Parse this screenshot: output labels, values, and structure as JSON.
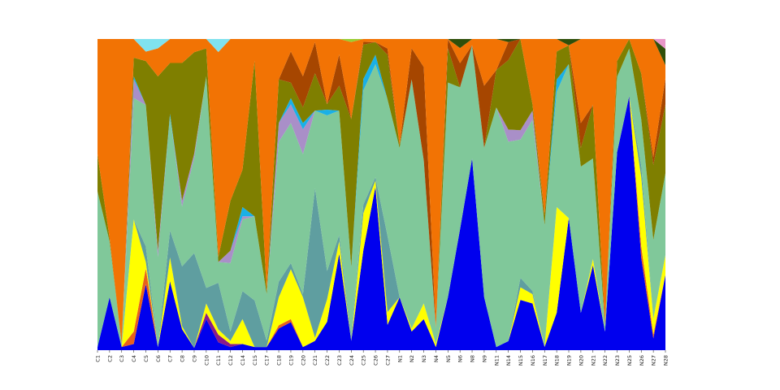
{
  "chart_data": {
    "type": "area",
    "stacked": true,
    "normalized": true,
    "ylim": [
      0,
      1
    ],
    "grid": false,
    "legend": "none",
    "categories": [
      "C1",
      "C2",
      "C3",
      "C4",
      "C5",
      "C6",
      "C7",
      "C8",
      "C9",
      "C10",
      "C11",
      "C12",
      "C14",
      "C15",
      "C17",
      "C18",
      "C19",
      "C20",
      "C21",
      "C22",
      "C23",
      "C24",
      "C25",
      "C26",
      "C27",
      "N1",
      "N2",
      "N3",
      "N4",
      "N5",
      "N6",
      "N8",
      "N9",
      "N11",
      "N14",
      "N15",
      "N16",
      "N17",
      "N18",
      "N19",
      "N20",
      "N21",
      "N22",
      "N23",
      "N25",
      "N26",
      "N27",
      "N28"
    ],
    "series": [
      {
        "color": "#0000ee",
        "values": [
          0.01,
          0.17,
          0.01,
          0.02,
          0.21,
          0.01,
          0.23,
          0.07,
          0.01,
          0.1,
          0.03,
          0.01,
          0.02,
          0.01,
          0.01,
          0.07,
          0.09,
          0.01,
          0.03,
          0.1,
          0.31,
          0.03,
          0.35,
          0.52,
          0.08,
          0.17,
          0.06,
          0.1,
          0.01,
          0.17,
          0.4,
          0.61,
          0.17,
          0.01,
          0.03,
          0.16,
          0.15,
          0.01,
          0.12,
          0.42,
          0.12,
          0.27,
          0.06,
          0.63,
          0.8,
          0.08,
          0.03,
          0.23
        ]
      },
      {
        "color": "#e8601c",
        "values": [
          0,
          0,
          0,
          0.04,
          0.05,
          0,
          0,
          0,
          0,
          0,
          0,
          0,
          0,
          0,
          0,
          0.01,
          0.01,
          0,
          0,
          0,
          0,
          0,
          0,
          0,
          0,
          0,
          0,
          0,
          0,
          0,
          0,
          0,
          0,
          0,
          0,
          0,
          0,
          0,
          0,
          0,
          0,
          0,
          0,
          0,
          0,
          0.01,
          0.01,
          0
        ]
      },
      {
        "color": "#8b1a89",
        "values": [
          0,
          0,
          0,
          0,
          0,
          0,
          0,
          0,
          0,
          0.02,
          0.03,
          0.01,
          0,
          0,
          0,
          0,
          0,
          0,
          0,
          0,
          0,
          0,
          0,
          0,
          0,
          0,
          0,
          0,
          0,
          0,
          0,
          0,
          0,
          0,
          0,
          0,
          0,
          0,
          0,
          0,
          0,
          0,
          0,
          0,
          0,
          0,
          0,
          0
        ]
      },
      {
        "color": "#ffff00",
        "values": [
          0,
          0,
          0,
          0.36,
          0.02,
          0,
          0.08,
          0.01,
          0,
          0.03,
          0.02,
          0.01,
          0.08,
          0,
          0,
          0.09,
          0.16,
          0.16,
          0.01,
          0.08,
          0.04,
          0,
          0.13,
          0.02,
          0.04,
          0,
          0.01,
          0.05,
          0.01,
          0,
          0,
          0,
          0,
          0,
          0,
          0.04,
          0.03,
          0,
          0.34,
          0,
          0,
          0.02,
          0,
          0,
          0,
          0.06,
          0.04,
          0.06
        ]
      },
      {
        "color": "#5f9ea0",
        "values": [
          0,
          0,
          0,
          0,
          0.05,
          0,
          0.09,
          0.2,
          0.43,
          0.05,
          0.18,
          0.03,
          0.09,
          0.15,
          0.02,
          0.05,
          0.02,
          0.01,
          0.48,
          0.1,
          0.02,
          0.01,
          0.03,
          0.01,
          0.24,
          0,
          0,
          0,
          0,
          0,
          0,
          0,
          0,
          0,
          0,
          0.03,
          0.01,
          0,
          0,
          0,
          0,
          0,
          0,
          0,
          0,
          0.01,
          0,
          0
        ]
      },
      {
        "color": "#80c89a",
        "values": [
          0.5,
          0.18,
          0.01,
          0.39,
          0.45,
          0.29,
          0.38,
          0.2,
          0.43,
          0.68,
          0.08,
          0.22,
          0.23,
          0.27,
          0.15,
          0.45,
          0.45,
          0.45,
          0.25,
          0.55,
          0.4,
          0.23,
          0.4,
          0.36,
          0.43,
          0.48,
          0.8,
          0.46,
          0.05,
          0.69,
          0.47,
          0.36,
          0.48,
          0.77,
          0.66,
          0.44,
          0.55,
          0.38,
          0.37,
          0.49,
          0.47,
          0.32,
          0.02,
          0.24,
          0.15,
          0.04,
          0.2,
          0.25
        ]
      },
      {
        "color": "#a98fc8",
        "values": [
          0,
          0,
          0,
          0.06,
          0,
          0.02,
          0,
          0.02,
          0.02,
          0,
          0,
          0.04,
          0.01,
          0,
          0,
          0.06,
          0.06,
          0.08,
          0,
          0,
          0,
          0,
          0,
          0,
          0,
          0,
          0,
          0,
          0,
          0,
          0,
          0,
          0,
          0,
          0.04,
          0.03,
          0.03,
          0,
          0,
          0,
          0,
          0,
          0,
          0,
          0,
          0,
          0,
          0
        ]
      },
      {
        "color": "#1ab0e6",
        "values": [
          0,
          0,
          0,
          0.01,
          0,
          0,
          0.01,
          0,
          0,
          0,
          0,
          0,
          0.03,
          0,
          0,
          0,
          0.02,
          0.02,
          0,
          0.02,
          0,
          0,
          0.04,
          0.03,
          0,
          0,
          0,
          0,
          0,
          0,
          0,
          0,
          0,
          0,
          0,
          0,
          0,
          0,
          0.04,
          0,
          0,
          0,
          0,
          0,
          0,
          0,
          0,
          0
        ]
      },
      {
        "color": "#7f7f00",
        "values": [
          0.12,
          0.01,
          0,
          0.06,
          0.14,
          0.56,
          0.17,
          0.46,
          0.46,
          0.09,
          0.02,
          0.16,
          0.12,
          0.5,
          0.01,
          0.14,
          0.05,
          0.05,
          0.12,
          0.02,
          0.08,
          0.48,
          0.12,
          0.04,
          0.14,
          0.01,
          0,
          0,
          0,
          0.11,
          0,
          0,
          0,
          0.12,
          0.23,
          0.29,
          0.02,
          0.03,
          0.09,
          0.06,
          0.06,
          0.17,
          0,
          0.05,
          0.03,
          0.04,
          0.19,
          0.21
        ]
      },
      {
        "color": "#a64600",
        "values": [
          0,
          0,
          0,
          0,
          0,
          0,
          0,
          0,
          0,
          0,
          0,
          0,
          0,
          0,
          0,
          0,
          0.1,
          0.1,
          0.1,
          0,
          0.1,
          0,
          0.01,
          0,
          0.02,
          0,
          0.1,
          0.3,
          0,
          0.03,
          0.08,
          0,
          0.2,
          0,
          0.06,
          0,
          0,
          0,
          0,
          0,
          0.08,
          0,
          0,
          0,
          0,
          0,
          0.02,
          0.08
        ]
      },
      {
        "color": "#f27304",
        "values": [
          0.37,
          0.64,
          0.98,
          0.06,
          0.03,
          0.09,
          0.08,
          0.08,
          0.06,
          0.03,
          0.79,
          0.52,
          0.42,
          0.07,
          0.81,
          0.13,
          0.04,
          0.12,
          0.01,
          0.23,
          0.05,
          0.25,
          0.01,
          0.01,
          0.03,
          0.34,
          0.03,
          0.09,
          0.91,
          0.0,
          0.05,
          0.02,
          0.15,
          0.1,
          0,
          0,
          0.21,
          0.55,
          0.04,
          0,
          0.27,
          0.21,
          0.92,
          0.07,
          0,
          0.03,
          0.3,
          0.04
        ]
      },
      {
        "color": "#9acd32",
        "values": [
          0,
          0,
          0,
          0,
          0,
          0,
          0,
          0,
          0,
          0,
          0,
          0,
          0,
          0,
          0,
          0,
          0,
          0,
          0,
          0,
          0,
          0.01,
          0,
          0,
          0,
          0,
          0,
          0,
          0,
          0,
          0,
          0,
          0,
          0,
          0,
          0,
          0,
          0,
          0,
          0,
          0,
          0,
          0,
          0,
          0,
          0,
          0,
          0
        ]
      },
      {
        "color": "#2f4f0a",
        "values": [
          0,
          0,
          0,
          0,
          0,
          0,
          0,
          0,
          0,
          0,
          0,
          0,
          0,
          0,
          0,
          0,
          0,
          0,
          0,
          0,
          0,
          0,
          0,
          0,
          0,
          0,
          0,
          0,
          0,
          0,
          0.03,
          0,
          0,
          0,
          0.01,
          0,
          0,
          0,
          0,
          0.02,
          0,
          0,
          0,
          0,
          0,
          0,
          0,
          0.05
        ]
      },
      {
        "color": "#80e2ee",
        "values": [
          0,
          0,
          0,
          0,
          0.04,
          0.03,
          0,
          0,
          0,
          0,
          0.05,
          0,
          0,
          0,
          0,
          0,
          0,
          0,
          0,
          0,
          0,
          0,
          0,
          0,
          0,
          0,
          0,
          0,
          0,
          0,
          0,
          0,
          0,
          0,
          0,
          0,
          0,
          0,
          0,
          0,
          0,
          0,
          0,
          0,
          0,
          0,
          0,
          0
        ]
      },
      {
        "color": "#e896c8",
        "values": [
          0,
          0,
          0,
          0,
          0,
          0,
          0,
          0,
          0,
          0,
          0,
          0,
          0,
          0,
          0,
          0,
          0,
          0,
          0,
          0,
          0,
          0,
          0,
          0,
          0,
          0,
          0,
          0,
          0,
          0,
          0,
          0,
          0,
          0,
          0,
          0,
          0,
          0,
          0,
          0,
          0,
          0,
          0,
          0,
          0,
          0,
          0,
          0.03
        ]
      }
    ]
  }
}
